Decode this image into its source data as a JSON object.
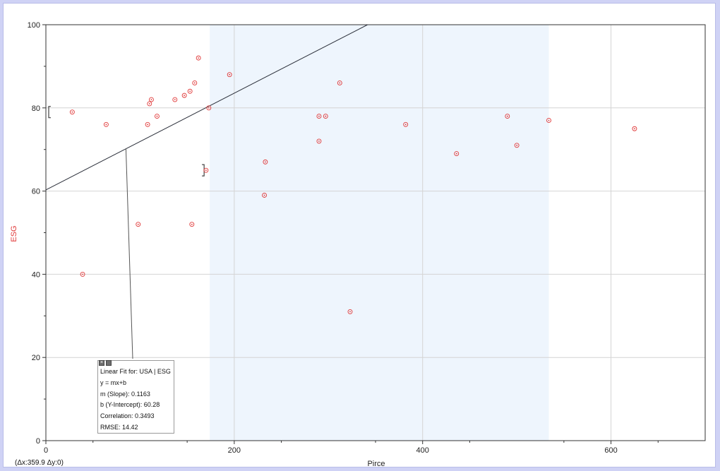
{
  "colors": {
    "point": "#e03838",
    "fit_line": "#2b2f3a",
    "highlight": "#eef5fd",
    "grid": "#d4d4d4",
    "ylabel": "#e03838"
  },
  "chart_data": {
    "type": "scatter",
    "xlabel": "Pirce",
    "ylabel": "ESG",
    "xlim": [
      0,
      700
    ],
    "ylim": [
      0,
      100
    ],
    "x_ticks": [
      0,
      200,
      400,
      600
    ],
    "y_ticks": [
      0,
      20,
      40,
      60,
      80,
      100
    ],
    "grid": true,
    "highlight_range_x": [
      174,
      534
    ],
    "series": [
      {
        "points": [
          [
            28,
            79
          ],
          [
            39,
            40
          ],
          [
            64,
            76
          ],
          [
            98,
            52
          ],
          [
            108,
            76
          ],
          [
            110,
            81
          ],
          [
            112,
            82
          ],
          [
            118,
            78
          ],
          [
            137,
            82
          ],
          [
            147,
            83
          ],
          [
            153,
            84
          ],
          [
            158,
            86
          ],
          [
            162,
            92
          ],
          [
            155,
            52
          ],
          [
            170,
            65
          ],
          [
            173,
            80
          ],
          [
            195,
            88
          ],
          [
            232,
            59
          ],
          [
            233,
            67
          ],
          [
            290,
            78
          ],
          [
            290,
            72
          ],
          [
            297,
            78
          ],
          [
            312,
            86
          ],
          [
            323,
            31
          ],
          [
            382,
            76
          ],
          [
            436,
            69
          ],
          [
            490,
            78
          ],
          [
            500,
            71
          ],
          [
            534,
            77
          ],
          [
            625,
            75
          ]
        ]
      }
    ],
    "fit": {
      "slope": 0.1163,
      "intercept": 60.28
    },
    "annotation_points": [
      [
        3,
        79
      ],
      [
        168,
        65
      ]
    ]
  },
  "fit_box": {
    "title": "Linear Fit for: USA | ESG",
    "equation": "y = mx+b",
    "slope": "m (Slope): 0.1163",
    "intercept": "b (Y-Intercept): 60.28",
    "correlation": "Correlation: 0.3493",
    "rmse": "RMSE: 14.42",
    "close_icon": "close-icon",
    "options_icon": "options-icon"
  },
  "status": {
    "delta": "(Δx:359.9 Δy:0)"
  }
}
